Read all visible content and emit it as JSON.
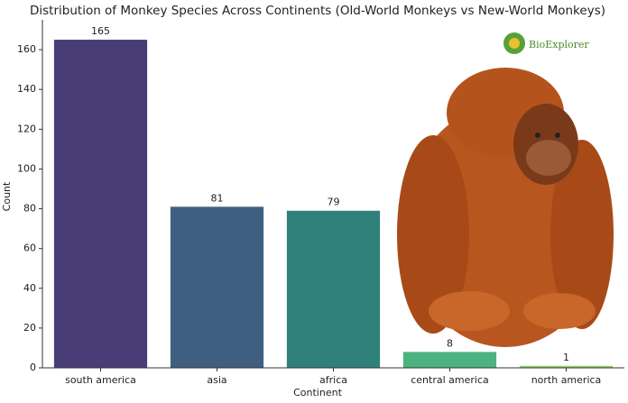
{
  "chart_data": {
    "type": "bar",
    "title": "Distribution of Monkey Species Across Continents (Old-World Monkeys vs New-World Monkeys)",
    "x_label": "Continent",
    "y_label": "Count",
    "categories": [
      "south america",
      "asia",
      "africa",
      "central america",
      "north america"
    ],
    "values": [
      165,
      81,
      79,
      8,
      1
    ],
    "colors": [
      "#483d77",
      "#3e5f80",
      "#2e8079",
      "#4cb380",
      "#8fce6a"
    ],
    "ylim": [
      0,
      175
    ],
    "yticks": [
      0,
      20,
      40,
      60,
      80,
      100,
      120,
      140,
      160
    ],
    "logo": "BioExplorer"
  }
}
